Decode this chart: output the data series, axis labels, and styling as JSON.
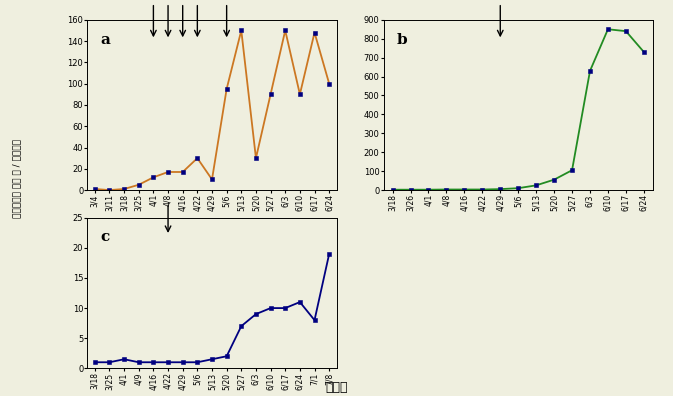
{
  "a": {
    "label": "a",
    "x_labels": [
      "3/4",
      "3/11",
      "3/18",
      "3/25",
      "4/1",
      "4/8",
      "4/16",
      "4/22",
      "4/29",
      "5/6",
      "5/13",
      "5/20",
      "5/27",
      "6/3",
      "6/10",
      "6/17",
      "6/24"
    ],
    "y_vals": [
      1,
      0,
      1,
      5,
      12,
      17,
      17,
      30,
      10,
      95,
      150,
      30,
      90,
      150,
      90,
      148,
      100
    ],
    "line_color": "#CC7722",
    "marker_color": "#000080",
    "arrows_x_idx": [
      4,
      5,
      6,
      7,
      9
    ],
    "ylim": [
      0,
      160
    ],
    "yticks": [
      0,
      20,
      40,
      60,
      80,
      100,
      120,
      140,
      160
    ]
  },
  "b": {
    "label": "b",
    "x_labels": [
      "3/18",
      "3/26",
      "4/1",
      "4/8",
      "4/16",
      "4/22",
      "4/29",
      "5/6",
      "5/13",
      "5/20",
      "5/27",
      "6/3",
      "6/10",
      "6/17",
      "6/24"
    ],
    "y_vals": [
      2,
      2,
      2,
      3,
      3,
      3,
      5,
      10,
      25,
      55,
      105,
      630,
      850,
      840,
      730
    ],
    "line_color": "#228B22",
    "marker_color": "#000080",
    "arrows_x_idx": [
      6
    ],
    "ylim": [
      0,
      900
    ],
    "yticks": [
      0,
      100,
      200,
      300,
      400,
      500,
      600,
      700,
      800,
      900
    ]
  },
  "c": {
    "label": "c",
    "x_labels": [
      "3/18",
      "3/25",
      "4/1",
      "4/9",
      "4/16",
      "4/22",
      "4/29",
      "5/6",
      "5/13",
      "5/20",
      "5/27",
      "6/3",
      "6/10",
      "6/17",
      "6/24",
      "7/1",
      "7/8"
    ],
    "y_vals": [
      1,
      1,
      1.5,
      1,
      1,
      1,
      1,
      1,
      1.5,
      2,
      7,
      9,
      10,
      10,
      11,
      8,
      19
    ],
    "line_color": "#000080",
    "marker_color": "#000080",
    "arrows_x_idx": [
      5
    ],
    "ylim": [
      0,
      25
    ],
    "yticks": [
      0,
      5,
      10,
      15,
      20,
      25
    ]
  },
  "bg_color": "#efefdf",
  "ylabel": "온실가루이 성충 수 / 점착트낙",
  "xlabel": "조사일"
}
